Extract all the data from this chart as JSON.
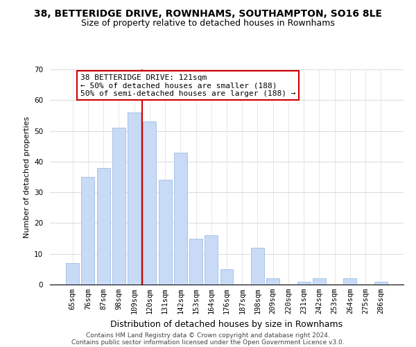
{
  "title": "38, BETTERIDGE DRIVE, ROWNHAMS, SOUTHAMPTON, SO16 8LE",
  "subtitle": "Size of property relative to detached houses in Rownhams",
  "xlabel": "Distribution of detached houses by size in Rownhams",
  "ylabel": "Number of detached properties",
  "footer_line1": "Contains HM Land Registry data © Crown copyright and database right 2024.",
  "footer_line2": "Contains public sector information licensed under the Open Government Licence v3.0.",
  "bar_labels": [
    "65sqm",
    "76sqm",
    "87sqm",
    "98sqm",
    "109sqm",
    "120sqm",
    "131sqm",
    "142sqm",
    "153sqm",
    "164sqm",
    "176sqm",
    "187sqm",
    "198sqm",
    "209sqm",
    "220sqm",
    "231sqm",
    "242sqm",
    "253sqm",
    "264sqm",
    "275sqm",
    "286sqm"
  ],
  "bar_values": [
    7,
    35,
    38,
    51,
    56,
    53,
    34,
    43,
    15,
    16,
    5,
    0,
    12,
    2,
    0,
    1,
    2,
    0,
    2,
    0,
    1
  ],
  "bar_color": "#c8daf5",
  "bar_edgecolor": "#a8c4e8",
  "vline_color": "#cc0000",
  "vline_index": 5,
  "ylim": [
    0,
    70
  ],
  "yticks": [
    0,
    10,
    20,
    30,
    40,
    50,
    60,
    70
  ],
  "annotation_title": "38 BETTERIDGE DRIVE: 121sqm",
  "annotation_line1": "← 50% of detached houses are smaller (188)",
  "annotation_line2": "50% of semi-detached houses are larger (188) →",
  "annotation_box_edgecolor": "#cc0000",
  "background_color": "#ffffff",
  "grid_color": "#dddddd",
  "title_fontsize": 10,
  "subtitle_fontsize": 9,
  "xlabel_fontsize": 9,
  "ylabel_fontsize": 8,
  "tick_fontsize": 7.5,
  "ann_fontsize": 8,
  "footer_fontsize": 6.5
}
